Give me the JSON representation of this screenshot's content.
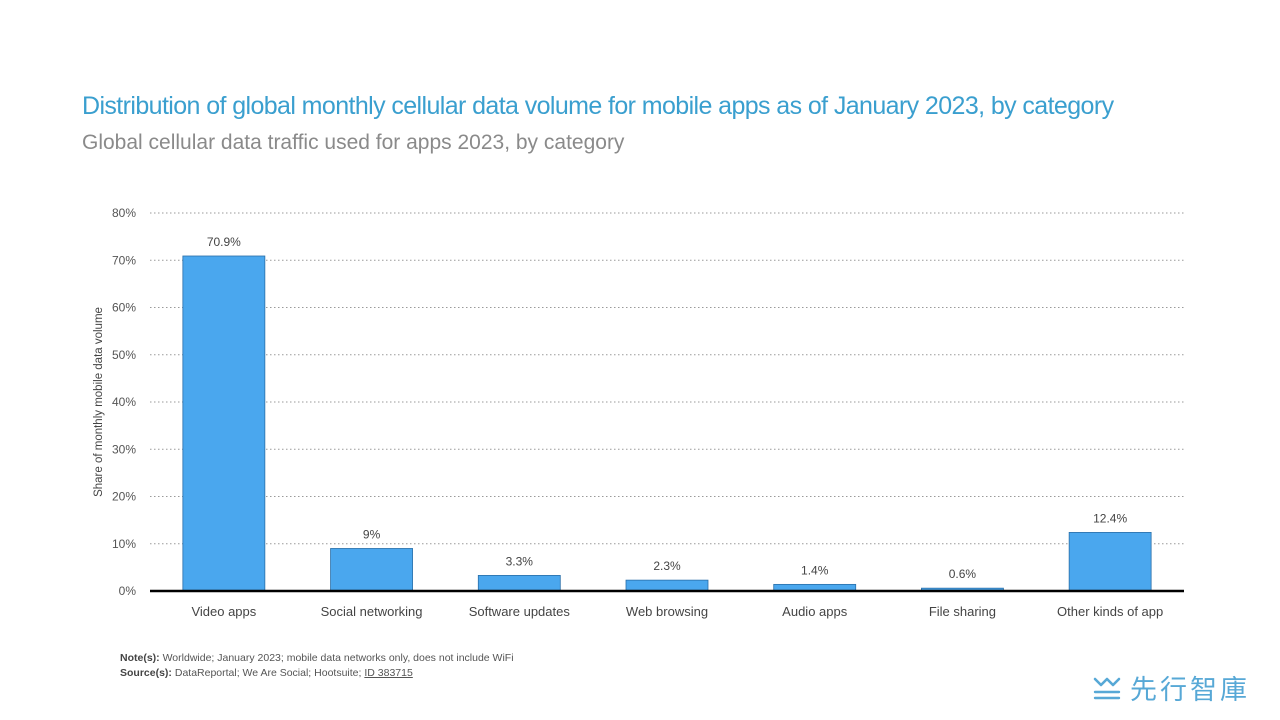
{
  "header": {
    "title": "Distribution of global monthly cellular data volume for mobile apps as of January 2023, by category",
    "subtitle": "Global cellular data traffic used for apps 2023, by category"
  },
  "chart_data": {
    "type": "bar",
    "categories": [
      "Video apps",
      "Social networking",
      "Software updates",
      "Web browsing",
      "Audio apps",
      "File sharing",
      "Other kinds of app"
    ],
    "values": [
      70.9,
      9,
      3.3,
      2.3,
      1.4,
      0.6,
      12.4
    ],
    "data_labels": [
      "70.9%",
      "9%",
      "3.3%",
      "2.3%",
      "1.4%",
      "0.6%",
      "12.4%"
    ],
    "ylabel": "Share of monthly mobile data volume",
    "xlabel": "",
    "ylim": [
      0,
      80
    ],
    "yticks": [
      0,
      10,
      20,
      30,
      40,
      50,
      60,
      70,
      80
    ],
    "ytick_labels": [
      "0%",
      "10%",
      "20%",
      "30%",
      "40%",
      "50%",
      "60%",
      "70%",
      "80%"
    ],
    "grid": true,
    "bar_color": "#4aa7ee",
    "bar_edge_color": "#2a6fa8"
  },
  "footer": {
    "notes_label": "Note(s):",
    "notes_text": " Worldwide; January 2023; mobile data networks only, does not include WiFi",
    "source_label": "Source(s):",
    "source_text": " DataReportal; We Are Social; Hootsuite; ",
    "source_id": "ID 383715"
  },
  "logo": {
    "text": "先行智庫",
    "icon": "wave-lines-icon",
    "color": "#57a8d6"
  }
}
